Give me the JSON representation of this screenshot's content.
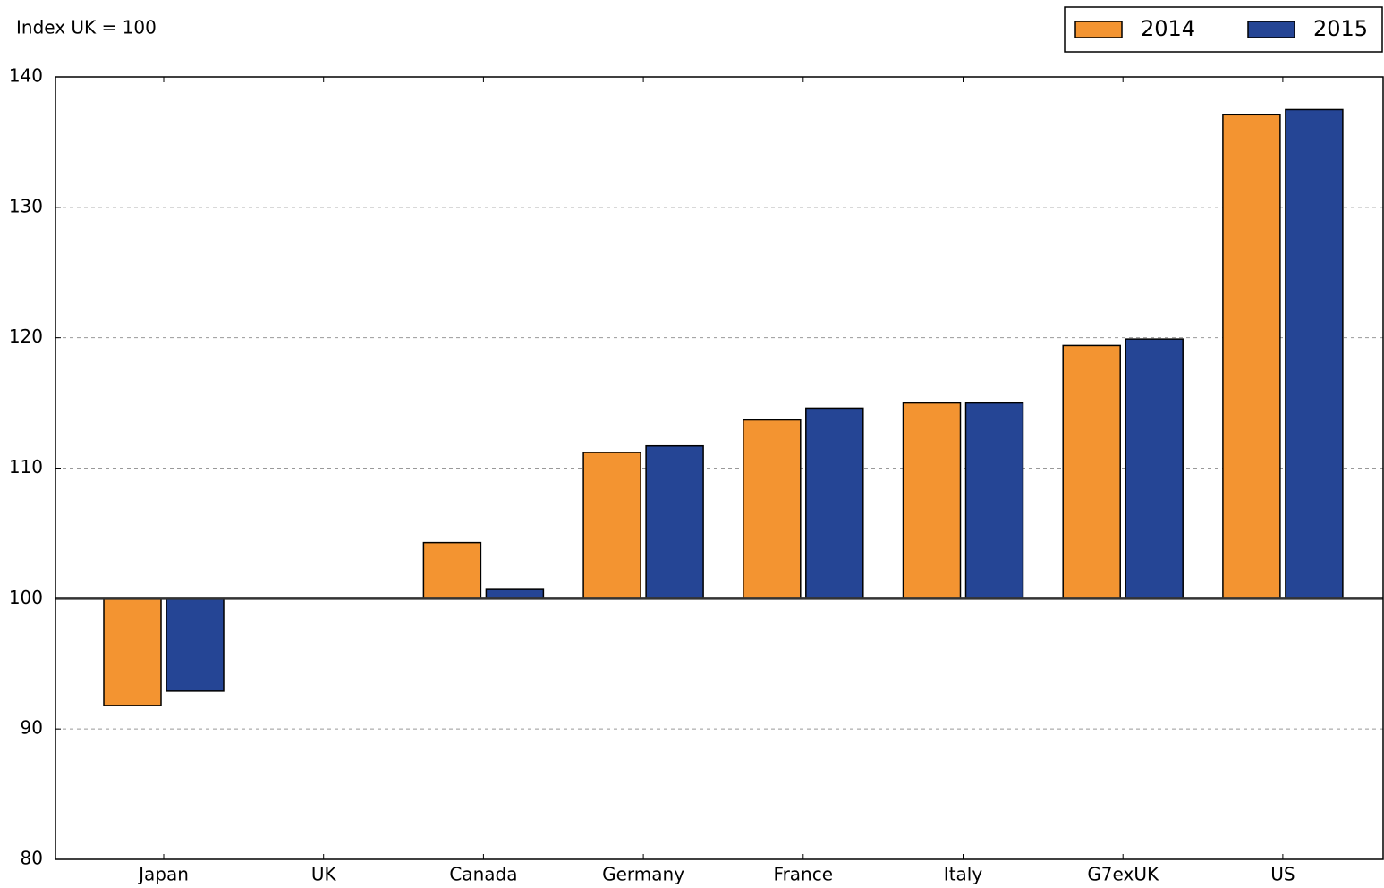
{
  "chart_data": {
    "type": "bar",
    "y_label": "Index UK = 100",
    "categories": [
      "Japan",
      "UK",
      "Canada",
      "Germany",
      "France",
      "Italy",
      "G7exUK",
      "US"
    ],
    "series": [
      {
        "name": "2014",
        "color": "#f39431",
        "values": [
          91.8,
          100,
          104.3,
          111.2,
          113.7,
          115.0,
          119.4,
          137.1
        ]
      },
      {
        "name": "2015",
        "color": "#254595",
        "values": [
          92.9,
          100,
          100.7,
          111.7,
          114.6,
          115.0,
          119.9,
          137.5
        ]
      }
    ],
    "baseline": 100,
    "ylim": [
      80,
      140
    ],
    "yticks": [
      80,
      90,
      100,
      110,
      120,
      130,
      140
    ],
    "grid": true,
    "legend": "upper right"
  }
}
